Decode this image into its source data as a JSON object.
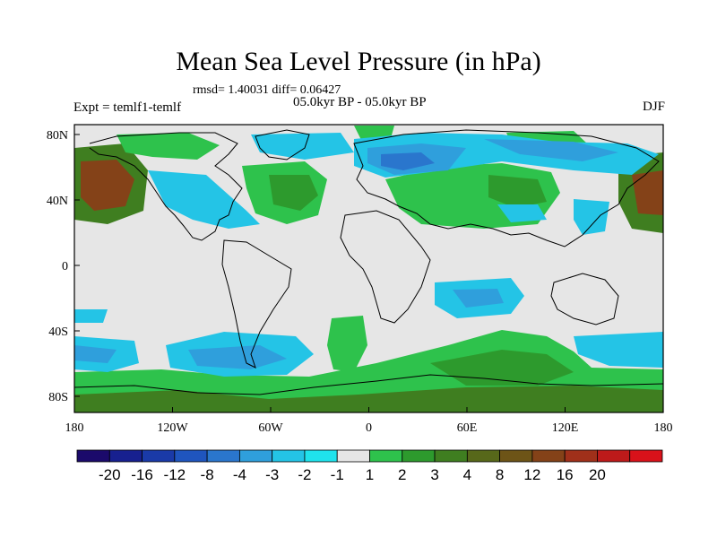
{
  "title": "Mean Sea Level Pressure (in hPa)",
  "stats": "rmsd= 1.40031 diff= 0.06427",
  "expt": "Expt = temlf1-temlf",
  "period": "05.0kyr BP - 05.0kyr BP",
  "season": "DJF",
  "lat_ticks": [
    "80N",
    "40N",
    "0",
    "40S",
    "80S"
  ],
  "lon_ticks": [
    "180",
    "120W",
    "60W",
    "0",
    "60E",
    "120E",
    "180"
  ],
  "colorbar": {
    "colors": [
      "#1b0a6b",
      "#17208f",
      "#1a3aa8",
      "#1f55be",
      "#2a76cd",
      "#2f9fdc",
      "#24c4e6",
      "#1fe3ec",
      "#e6e6e6",
      "#2ec24c",
      "#2d9a2d",
      "#3f7e20",
      "#57681a",
      "#6d5417",
      "#844218",
      "#a0301a",
      "#bd1a1a",
      "#d9121a"
    ],
    "labels": [
      "-20",
      "-16",
      "-12",
      "-8",
      "-4",
      "-3",
      "-2",
      "-1",
      "1",
      "2",
      "3",
      "4",
      "8",
      "12",
      "16",
      "20"
    ]
  },
  "legend_colors": {
    "ocean_base": "#e6e6e6",
    "neg_light": "#24c4e6",
    "neg_mid": "#2f9fdc",
    "neg_dark": "#2a76cd",
    "pos_light": "#2ec24c",
    "pos_mid": "#2d9a2d",
    "pos_dark": "#3f7e20",
    "pos_brown": "#844218"
  }
}
